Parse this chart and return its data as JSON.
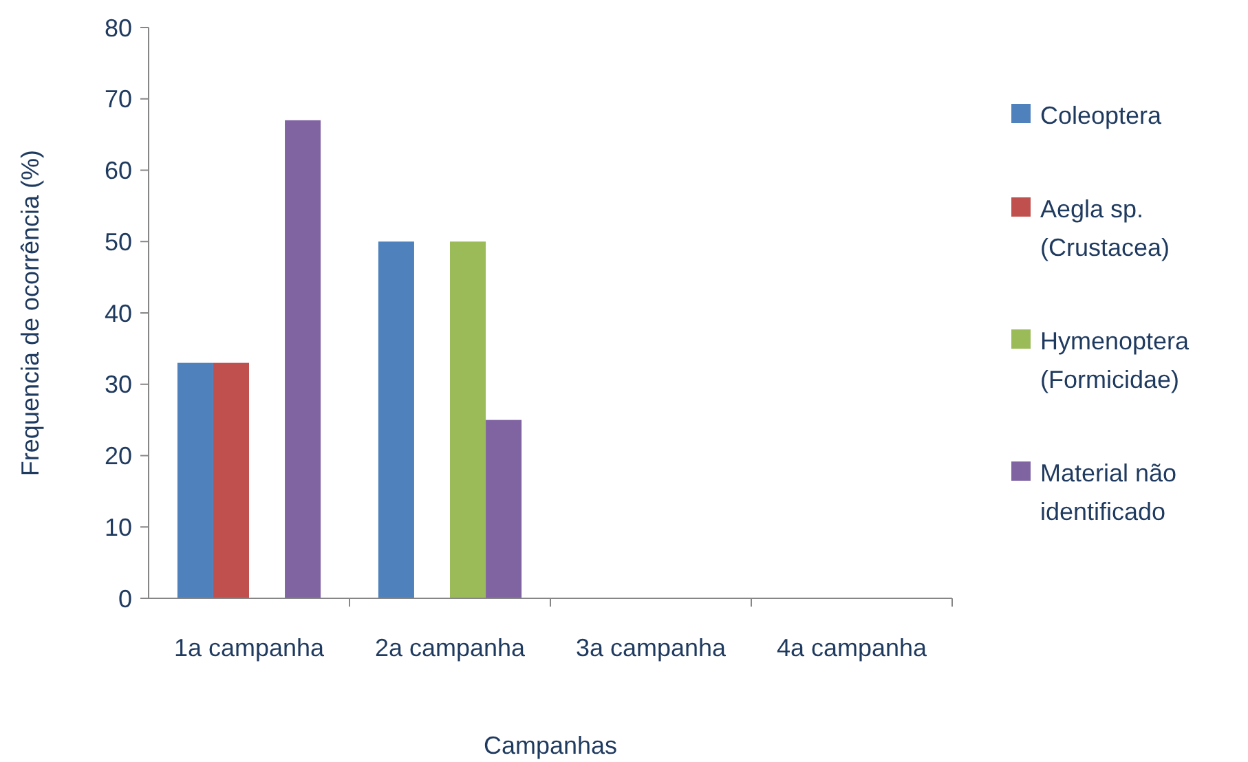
{
  "chart_data": {
    "type": "bar",
    "xlabel": "Campanhas",
    "ylabel": "Frequencia de ocorrência (%)",
    "categories": [
      "1a campanha",
      "2a campanha",
      "3a campanha",
      "4a campanha"
    ],
    "series": [
      {
        "name": "Coleoptera",
        "color": "#4f81bd",
        "values": [
          33,
          50,
          0,
          0
        ]
      },
      {
        "name": "Aegla sp. (Crustacea)",
        "color": "#c0504d",
        "values": [
          33,
          0,
          0,
          0
        ]
      },
      {
        "name": "Hymenoptera (Formicidae)",
        "color": "#9bbb59",
        "values": [
          0,
          50,
          0,
          0
        ]
      },
      {
        "name": "Material não identificado",
        "color": "#8064a2",
        "values": [
          67,
          25,
          0,
          0
        ]
      }
    ],
    "ylim": [
      0,
      80
    ],
    "yticks": [
      0,
      10,
      20,
      30,
      40,
      50,
      60,
      70,
      80
    ],
    "grid": false,
    "legend": "right"
  }
}
